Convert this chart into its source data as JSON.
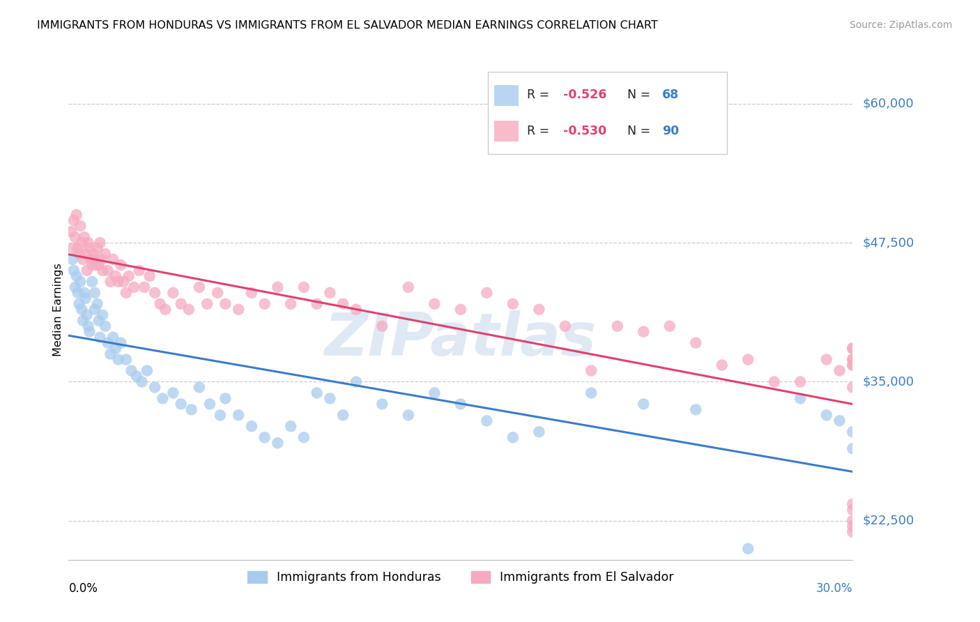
{
  "title": "IMMIGRANTS FROM HONDURAS VS IMMIGRANTS FROM EL SALVADOR MEDIAN EARNINGS CORRELATION CHART",
  "source": "Source: ZipAtlas.com",
  "ylabel": "Median Earnings",
  "yticks": [
    22500,
    35000,
    47500,
    60000
  ],
  "ytick_labels": [
    "$22,500",
    "$35,000",
    "$47,500",
    "$60,000"
  ],
  "xmin": 0.0,
  "xmax": 30.0,
  "ymin": 19000,
  "ymax": 64000,
  "legend_label1": "Immigrants from Honduras",
  "legend_label2": "Immigrants from El Salvador",
  "color_blue": "#A8CBEE",
  "color_pink": "#F5AABF",
  "line_blue": "#3A7CC8",
  "line_pink": "#E04070",
  "axis_label_color": "#3B7DC8",
  "watermark": "ZIPatlas",
  "watermark_color": "#C5D8EA",
  "hond_x": [
    0.15,
    0.2,
    0.25,
    0.3,
    0.35,
    0.4,
    0.45,
    0.5,
    0.55,
    0.6,
    0.65,
    0.7,
    0.75,
    0.8,
    0.9,
    1.0,
    1.0,
    1.1,
    1.15,
    1.2,
    1.3,
    1.4,
    1.5,
    1.6,
    1.7,
    1.8,
    1.9,
    2.0,
    2.2,
    2.4,
    2.6,
    2.8,
    3.0,
    3.3,
    3.6,
    4.0,
    4.3,
    4.7,
    5.0,
    5.4,
    5.8,
    6.0,
    6.5,
    7.0,
    7.5,
    8.0,
    8.5,
    9.0,
    9.5,
    10.0,
    10.5,
    11.0,
    12.0,
    13.0,
    14.0,
    15.0,
    16.0,
    17.0,
    18.0,
    20.0,
    22.0,
    24.0,
    26.0,
    28.0,
    29.0,
    29.5,
    30.0,
    30.0
  ],
  "hond_y": [
    46000,
    45000,
    43500,
    44500,
    43000,
    42000,
    44000,
    41500,
    40500,
    43000,
    42500,
    41000,
    40000,
    39500,
    44000,
    43000,
    41500,
    42000,
    40500,
    39000,
    41000,
    40000,
    38500,
    37500,
    39000,
    38000,
    37000,
    38500,
    37000,
    36000,
    35500,
    35000,
    36000,
    34500,
    33500,
    34000,
    33000,
    32500,
    34500,
    33000,
    32000,
    33500,
    32000,
    31000,
    30000,
    29500,
    31000,
    30000,
    34000,
    33500,
    32000,
    35000,
    33000,
    32000,
    34000,
    33000,
    31500,
    30000,
    30500,
    34000,
    33000,
    32500,
    20000,
    33500,
    32000,
    31500,
    29000,
    30500
  ],
  "salv_x": [
    0.1,
    0.15,
    0.2,
    0.25,
    0.3,
    0.35,
    0.4,
    0.45,
    0.5,
    0.55,
    0.6,
    0.65,
    0.7,
    0.75,
    0.8,
    0.85,
    0.9,
    0.95,
    1.0,
    1.05,
    1.1,
    1.15,
    1.2,
    1.25,
    1.3,
    1.4,
    1.5,
    1.6,
    1.7,
    1.8,
    1.9,
    2.0,
    2.1,
    2.2,
    2.3,
    2.5,
    2.7,
    2.9,
    3.1,
    3.3,
    3.5,
    3.7,
    4.0,
    4.3,
    4.6,
    5.0,
    5.3,
    5.7,
    6.0,
    6.5,
    7.0,
    7.5,
    8.0,
    8.5,
    9.0,
    9.5,
    10.0,
    10.5,
    11.0,
    12.0,
    13.0,
    14.0,
    15.0,
    16.0,
    17.0,
    18.0,
    19.0,
    20.0,
    21.0,
    22.0,
    23.0,
    24.0,
    25.0,
    26.0,
    27.0,
    28.0,
    29.0,
    29.5,
    30.0,
    30.0,
    30.0,
    30.0,
    30.0,
    30.0,
    30.0,
    30.0,
    30.0,
    30.0,
    30.0,
    30.0
  ],
  "salv_y": [
    48500,
    47000,
    49500,
    48000,
    50000,
    47000,
    46500,
    49000,
    47500,
    46000,
    48000,
    46500,
    45000,
    47500,
    47000,
    46000,
    45500,
    46500,
    46000,
    45500,
    47000,
    45500,
    47500,
    46000,
    45000,
    46500,
    45000,
    44000,
    46000,
    44500,
    44000,
    45500,
    44000,
    43000,
    44500,
    43500,
    45000,
    43500,
    44500,
    43000,
    42000,
    41500,
    43000,
    42000,
    41500,
    43500,
    42000,
    43000,
    42000,
    41500,
    43000,
    42000,
    43500,
    42000,
    43500,
    42000,
    43000,
    42000,
    41500,
    40000,
    43500,
    42000,
    41500,
    43000,
    42000,
    41500,
    40000,
    36000,
    40000,
    39500,
    40000,
    38500,
    36500,
    37000,
    35000,
    35000,
    37000,
    36000,
    34500,
    38000,
    37000,
    36500,
    38000,
    37000,
    36500,
    22500,
    21500,
    24000,
    23500,
    22000
  ]
}
